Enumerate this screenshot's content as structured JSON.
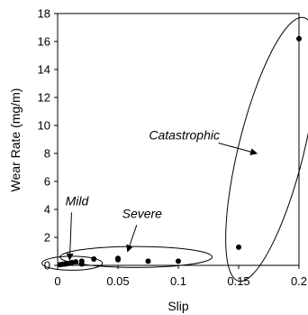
{
  "chart_data": {
    "type": "scatter",
    "title": "",
    "xlabel": "Slip",
    "ylabel": "Wear Rate (mg/m)",
    "xlim": [
      0,
      0.2
    ],
    "ylim": [
      0,
      18
    ],
    "x_ticks": [
      0,
      0.05,
      0.1,
      0.15,
      0.2
    ],
    "x_tick_labels": [
      "0",
      "0.05",
      "0.1",
      "0.15",
      "0.2"
    ],
    "y_ticks": [
      0,
      2,
      4,
      6,
      8,
      10,
      12,
      14,
      16,
      18
    ],
    "y_tick_labels": [
      "0",
      "2",
      "4",
      "6",
      "8",
      "10",
      "12",
      "14",
      "16",
      "18"
    ],
    "grid": false,
    "legend": "none",
    "marker_color": "#000000",
    "points": [
      {
        "x": 0.002,
        "y": 0.05
      },
      {
        "x": 0.004,
        "y": 0.08
      },
      {
        "x": 0.006,
        "y": 0.1
      },
      {
        "x": 0.008,
        "y": 0.12
      },
      {
        "x": 0.01,
        "y": 0.15
      },
      {
        "x": 0.012,
        "y": 0.2
      },
      {
        "x": 0.015,
        "y": 0.25
      },
      {
        "x": 0.02,
        "y": 0.3
      },
      {
        "x": 0.02,
        "y": 0.1
      },
      {
        "x": 0.03,
        "y": 0.45
      },
      {
        "x": 0.05,
        "y": 0.5
      },
      {
        "x": 0.05,
        "y": 0.4
      },
      {
        "x": 0.075,
        "y": 0.3
      },
      {
        "x": 0.1,
        "y": 0.3
      },
      {
        "x": 0.15,
        "y": 1.3
      },
      {
        "x": 0.2,
        "y": 16.2
      }
    ],
    "regions": [
      {
        "label": "Mild",
        "cx": 0.012,
        "cy": 0.15,
        "rx": 0.025,
        "ry": 0.5
      },
      {
        "label": "Severe",
        "cx": 0.065,
        "cy": 0.6,
        "rx": 0.063,
        "ry": 0.75
      },
      {
        "label": "Catastrophic",
        "cx": 0.177,
        "cy": 8.3,
        "rx": 0.027,
        "ry": 9.7,
        "tilt": 0.0
      }
    ],
    "annotations": [
      {
        "text": "Mild",
        "x": 0.016,
        "y": 4.3,
        "arrow_to": {
          "x": 0.01,
          "y": 0.4
        }
      },
      {
        "text": "Severe",
        "x": 0.07,
        "y": 3.4,
        "arrow_to": {
          "x": 0.058,
          "y": 1.0
        }
      },
      {
        "text": "Catastrophic",
        "x": 0.105,
        "y": 9.0,
        "arrow_to": {
          "x": 0.165,
          "y": 8.0
        }
      }
    ]
  }
}
